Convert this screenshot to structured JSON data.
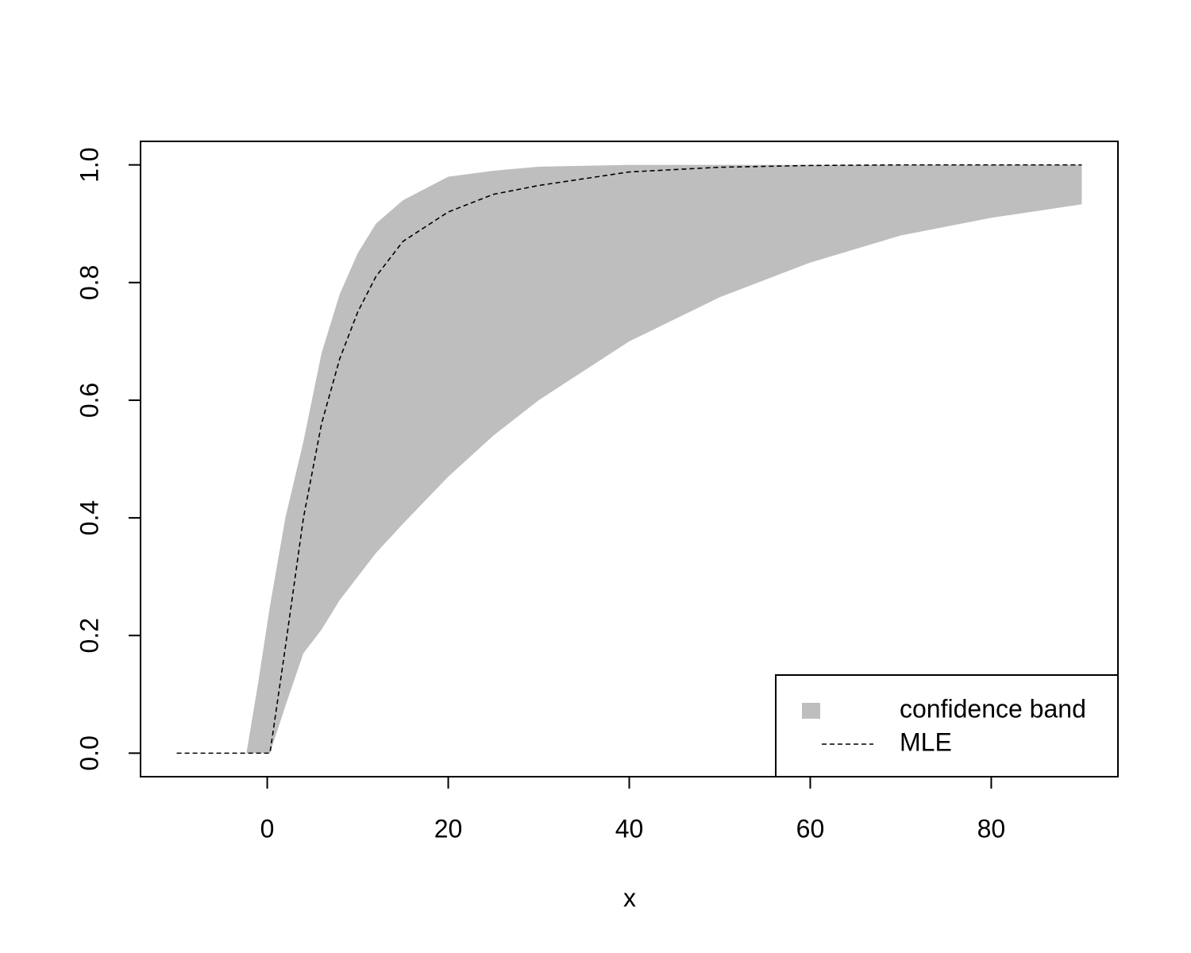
{
  "chart_data": {
    "type": "band-line",
    "x_label": "x",
    "x": [
      -10,
      -2.3,
      -1,
      0,
      0.3,
      2,
      4,
      6,
      8,
      10,
      12,
      15,
      20,
      25,
      30,
      40,
      50,
      60,
      70,
      80,
      90
    ],
    "series": [
      {
        "name": "confidence band",
        "color": "#bebebe",
        "upper": [
          0,
          0,
          0.12,
          0.22,
          0.25,
          0.4,
          0.53,
          0.68,
          0.78,
          0.85,
          0.9,
          0.94,
          0.98,
          0.99,
          0.997,
          1,
          1,
          1,
          1,
          1,
          1
        ],
        "lower": [
          0,
          0,
          0,
          0,
          0,
          0.08,
          0.17,
          0.21,
          0.26,
          0.3,
          0.34,
          0.39,
          0.47,
          0.54,
          0.6,
          0.7,
          0.775,
          0.834,
          0.88,
          0.91,
          0.933
        ]
      },
      {
        "name": "MLE",
        "color": "#000000",
        "dashed": true,
        "values": [
          0,
          0,
          0,
          0,
          0,
          0.18,
          0.4,
          0.56,
          0.67,
          0.75,
          0.81,
          0.87,
          0.92,
          0.95,
          0.965,
          0.988,
          0.996,
          0.999,
          1,
          1,
          1
        ]
      }
    ],
    "xlim": [
      -14,
      94
    ],
    "ylim": [
      -0.04,
      1.04
    ],
    "xticks": [
      0,
      20,
      40,
      60,
      80
    ],
    "yticks": [
      {
        "value": 0,
        "label": "0.0"
      },
      {
        "value": 0.2,
        "label": "0.2"
      },
      {
        "value": 0.4,
        "label": "0.4"
      },
      {
        "value": 0.6,
        "label": "0.6"
      },
      {
        "value": 0.8,
        "label": "0.8"
      },
      {
        "value": 1,
        "label": "1.0"
      }
    ],
    "legend": "bottom-right"
  }
}
